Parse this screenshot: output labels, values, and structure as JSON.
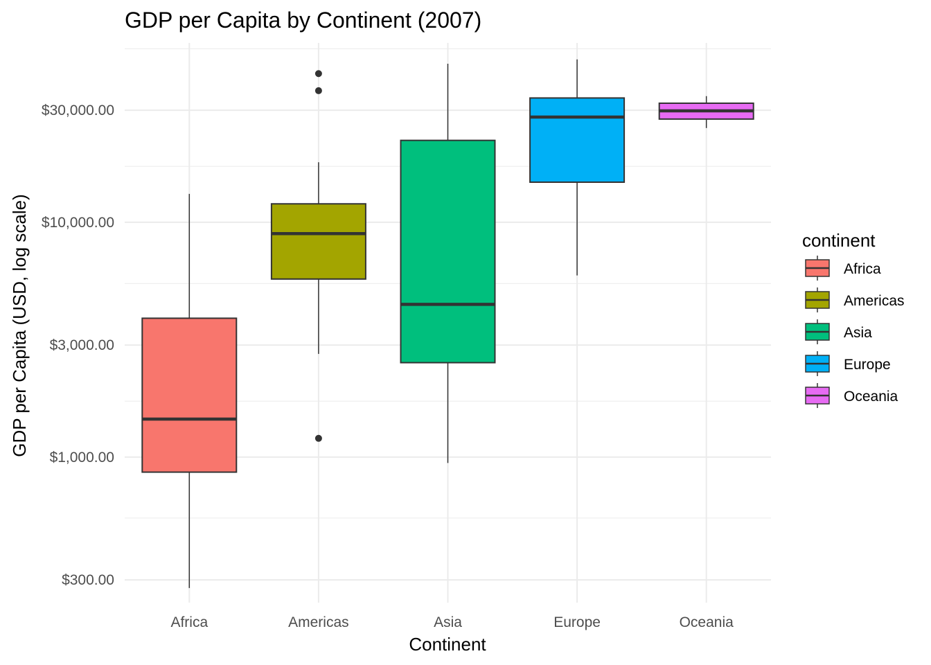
{
  "chart_data": {
    "type": "boxplot",
    "title": "GDP per Capita by Continent (2007)",
    "xlabel": "Continent",
    "ylabel": "GDP per Capita (USD, log scale)",
    "yscale": "log10",
    "ylim": [
      240,
      58000
    ],
    "yticks": [
      {
        "value": 300,
        "label": "$300.00"
      },
      {
        "value": 1000,
        "label": "$1,000.00"
      },
      {
        "value": 3000,
        "label": "$3,000.00"
      },
      {
        "value": 10000,
        "label": "$10,000.00"
      },
      {
        "value": 30000,
        "label": "$30,000.00"
      }
    ],
    "yminor_gridlines": [
      550,
      1730,
      5480,
      17300,
      54800
    ],
    "grid": true,
    "legend": {
      "title": "continent",
      "position": "right"
    },
    "categories": [
      "Africa",
      "Americas",
      "Asia",
      "Europe",
      "Oceania"
    ],
    "series": [
      {
        "name": "Africa",
        "color": "#F8766D",
        "whisker_low": 277,
        "q1": 863,
        "median": 1452,
        "q3": 3902,
        "whisker_high": 13206,
        "outliers": []
      },
      {
        "name": "Americas",
        "color": "#A3A500",
        "whisker_low": 2750,
        "q1": 5730,
        "median": 8948,
        "q3": 11978,
        "whisker_high": 18009,
        "outliers": [
          1202,
          36319,
          42952
        ]
      },
      {
        "name": "Asia",
        "color": "#00BF7D",
        "whisker_low": 944,
        "q1": 2524,
        "median": 4471,
        "q3": 22316,
        "whisker_high": 47308,
        "outliers": []
      },
      {
        "name": "Europe",
        "color": "#00B0F6",
        "whisker_low": 5937,
        "q1": 14809,
        "median": 28054,
        "q3": 33817,
        "whisker_high": 49357,
        "outliers": []
      },
      {
        "name": "Oceania",
        "color": "#E76BF3",
        "whisker_low": 25185,
        "q1": 27498,
        "median": 29810,
        "q3": 32123,
        "whisker_high": 34435,
        "outliers": []
      }
    ]
  }
}
